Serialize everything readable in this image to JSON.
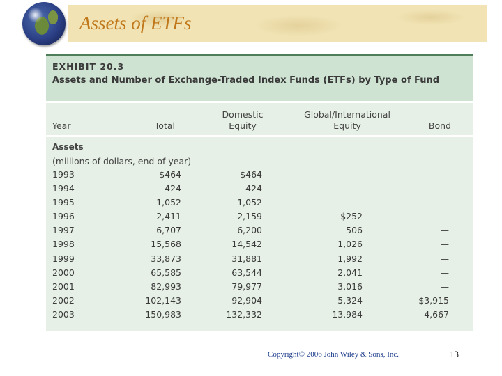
{
  "slide": {
    "title": "Assets of ETFs",
    "copyright": "Copyright© 2006 John Wiley & Sons, Inc.",
    "page_number": "13"
  },
  "exhibit": {
    "number": "EXHIBIT 20.3",
    "title": "Assets and Number of Exchange-Traded Index Funds (ETFs) by Type of Fund",
    "columns": {
      "year": "Year",
      "total": "Total",
      "domestic": "Domestic Equity",
      "global": "Global/International Equity",
      "bond": "Bond"
    },
    "section_label": "Assets",
    "section_sub": "(millions of dollars, end of year)",
    "rows": [
      {
        "year": "1993",
        "total": "$464",
        "domestic": "$464",
        "global": "—",
        "bond": "—"
      },
      {
        "year": "1994",
        "total": "424",
        "domestic": "424",
        "global": "—",
        "bond": "—"
      },
      {
        "year": "1995",
        "total": "1,052",
        "domestic": "1,052",
        "global": "—",
        "bond": "—"
      },
      {
        "year": "1996",
        "total": "2,411",
        "domestic": "2,159",
        "global": "$252",
        "bond": "—"
      },
      {
        "year": "1997",
        "total": "6,707",
        "domestic": "6,200",
        "global": "506",
        "bond": "—"
      },
      {
        "year": "1998",
        "total": "15,568",
        "domestic": "14,542",
        "global": "1,026",
        "bond": "—"
      },
      {
        "year": "1999",
        "total": "33,873",
        "domestic": "31,881",
        "global": "1,992",
        "bond": "—"
      },
      {
        "year": "2000",
        "total": "65,585",
        "domestic": "63,544",
        "global": "2,041",
        "bond": "—"
      },
      {
        "year": "2001",
        "total": "82,993",
        "domestic": "79,977",
        "global": "3,016",
        "bond": "—"
      },
      {
        "year": "2002",
        "total": "102,143",
        "domestic": "92,904",
        "global": "5,324",
        "bond": "$3,915"
      },
      {
        "year": "2003",
        "total": "150,983",
        "domestic": "132,332",
        "global": "13,984",
        "bond": "4,667"
      }
    ]
  },
  "colors": {
    "title": "#c0781a",
    "banner": "#f1e3b4",
    "exhibit_header": "#cfe3d3",
    "exhibit_body": "#e6f0e6",
    "rule": "#4e7f5a",
    "copyright": "#1a3a8a"
  },
  "icons": {
    "logo": "globe-icon"
  }
}
